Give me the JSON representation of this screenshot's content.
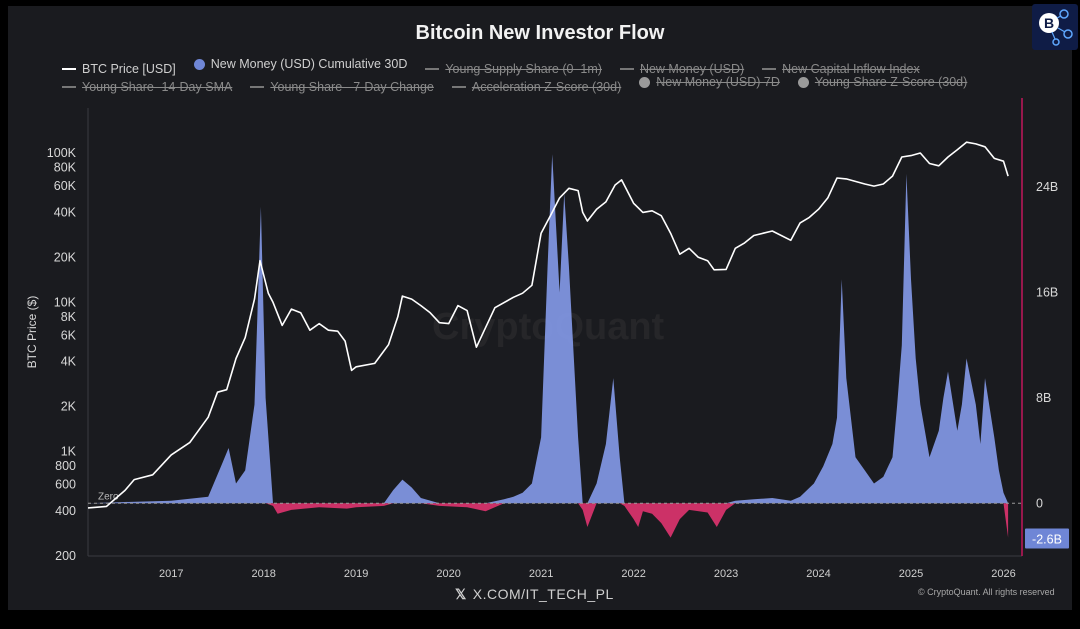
{
  "header": {
    "title": "Bitcoin New Investor Flow"
  },
  "legend": [
    {
      "label": "BTC Price [USD]",
      "kind": "line",
      "active": true,
      "color": "#ffffff"
    },
    {
      "label": "New Money (USD) Cumulative 30D",
      "kind": "dot",
      "active": true,
      "color": "#6f86d6"
    },
    {
      "label": "Young Supply Share (0–1m)",
      "kind": "line",
      "active": false,
      "color": "#777777"
    },
    {
      "label": "New Money (USD)",
      "kind": "line",
      "active": false,
      "color": "#777777"
    },
    {
      "label": "New Capital Inflow Index",
      "kind": "line",
      "active": false,
      "color": "#777777"
    },
    {
      "label": "Young Share -14-Day SMA",
      "kind": "line",
      "active": false,
      "color": "#777777"
    },
    {
      "label": "Young Share - 7-Day Change",
      "kind": "line",
      "active": false,
      "color": "#777777"
    },
    {
      "label": "Acceleration Z-Score (30d)",
      "kind": "line",
      "active": false,
      "color": "#777777"
    },
    {
      "label": "New Money (USD) 7D",
      "kind": "dot",
      "active": false,
      "color": "#9a9a9a"
    },
    {
      "label": "Young Share Z-Score (30d)",
      "kind": "dot",
      "active": false,
      "color": "#9a9a9a"
    }
  ],
  "footer": {
    "source": "X.COM/IT_TECH_PL",
    "copyright": "© CryptoQuant. All rights reserved"
  },
  "watermark": "CryptoQuant",
  "colors": {
    "background": "#1a1b1f",
    "price_line": "#ffffff",
    "positive_area": "#7f95e0",
    "negative_area": "#d6336c",
    "right_axis": "#c2185b",
    "zero_line": "#9a9a9a",
    "badge": "#6f86d6"
  },
  "chart_data": {
    "type": "line+area",
    "title": "Bitcoin New Investor Flow",
    "ylabel_left": "BTC Price ($)",
    "left_axis_scale": "log",
    "ylim_left": [
      200,
      200000
    ],
    "left_ticks": [
      "100K",
      "80K",
      "60K",
      "40K",
      "20K",
      "10K",
      "8K",
      "6K",
      "4K",
      "2K",
      "1K",
      "800",
      "600",
      "400",
      "200"
    ],
    "left_tick_values": [
      100000,
      80000,
      60000,
      40000,
      20000,
      10000,
      8000,
      6000,
      4000,
      2000,
      1000,
      800,
      600,
      400,
      200
    ],
    "right_axis_ylim": [
      -4000000000,
      30000000000
    ],
    "right_ticks": [
      "24B",
      "16B",
      "8B",
      "0"
    ],
    "right_tick_values": [
      24000000000,
      16000000000,
      8000000000,
      0
    ],
    "right_badge": "-2.6B",
    "right_badge_value": -2600000000,
    "zero_label": "Zero",
    "x_ticks": [
      "2017",
      "2018",
      "2019",
      "2020",
      "2021",
      "2022",
      "2023",
      "2024",
      "2025",
      "2026"
    ],
    "x_tick_values": [
      2017,
      2018,
      2019,
      2020,
      2021,
      2022,
      2023,
      2024,
      2025,
      2026
    ],
    "xlim": [
      2016.1,
      2026.2
    ],
    "grid": false,
    "legend_position": "top",
    "series": [
      {
        "name": "BTC Price [USD]",
        "x": [
          2016.1,
          2016.3,
          2016.5,
          2016.6,
          2016.8,
          2017.0,
          2017.2,
          2017.4,
          2017.5,
          2017.6,
          2017.7,
          2017.8,
          2017.9,
          2017.96,
          2018.05,
          2018.1,
          2018.2,
          2018.3,
          2018.4,
          2018.5,
          2018.6,
          2018.7,
          2018.8,
          2018.88,
          2018.95,
          2019.0,
          2019.2,
          2019.35,
          2019.45,
          2019.5,
          2019.6,
          2019.7,
          2019.8,
          2019.9,
          2020.0,
          2020.1,
          2020.2,
          2020.3,
          2020.5,
          2020.7,
          2020.8,
          2020.9,
          2021.0,
          2021.1,
          2021.2,
          2021.3,
          2021.4,
          2021.45,
          2021.5,
          2021.6,
          2021.7,
          2021.8,
          2021.87,
          2022.0,
          2022.1,
          2022.2,
          2022.3,
          2022.4,
          2022.5,
          2022.6,
          2022.7,
          2022.8,
          2022.87,
          2023.0,
          2023.1,
          2023.2,
          2023.3,
          2023.5,
          2023.7,
          2023.8,
          2023.9,
          2024.0,
          2024.1,
          2024.2,
          2024.3,
          2024.5,
          2024.6,
          2024.7,
          2024.8,
          2024.9,
          2025.0,
          2025.1,
          2025.2,
          2025.3,
          2025.4,
          2025.5,
          2025.6,
          2025.7,
          2025.8,
          2025.9,
          2026.0,
          2026.05
        ],
        "values": [
          420,
          430,
          550,
          650,
          700,
          950,
          1150,
          1700,
          2500,
          2600,
          4200,
          5800,
          10500,
          19000,
          11500,
          10000,
          7000,
          9000,
          8500,
          6500,
          7200,
          6500,
          6400,
          5500,
          3500,
          3700,
          3900,
          5200,
          8000,
          11000,
          10500,
          9500,
          8500,
          7300,
          7200,
          9500,
          8800,
          5000,
          9200,
          10800,
          11500,
          13000,
          29000,
          38000,
          50000,
          58000,
          56000,
          40000,
          35000,
          42000,
          47000,
          61000,
          66000,
          46000,
          40000,
          41000,
          38000,
          29000,
          21000,
          23000,
          20000,
          19000,
          16500,
          16600,
          23000,
          25000,
          28000,
          30000,
          26000,
          34000,
          37000,
          42000,
          50000,
          68000,
          67000,
          62000,
          60000,
          62000,
          70000,
          94000,
          96000,
          100000,
          85000,
          82000,
          94000,
          105000,
          118000,
          115000,
          110000,
          92000,
          88000,
          70000
        ]
      },
      {
        "name": "New Money (USD) Cumulative 30D",
        "x": [
          2016.1,
          2016.5,
          2017.0,
          2017.4,
          2017.55,
          2017.62,
          2017.7,
          2017.8,
          2017.9,
          2017.97,
          2018.02,
          2018.1,
          2018.15,
          2018.3,
          2018.6,
          2018.9,
          2019.0,
          2019.3,
          2019.4,
          2019.5,
          2019.6,
          2019.7,
          2019.9,
          2020.2,
          2020.4,
          2020.6,
          2020.7,
          2020.8,
          2020.9,
          2021.0,
          2021.07,
          2021.12,
          2021.2,
          2021.25,
          2021.3,
          2021.4,
          2021.45,
          2021.5,
          2021.6,
          2021.7,
          2021.78,
          2021.85,
          2021.9,
          2022.0,
          2022.05,
          2022.1,
          2022.2,
          2022.3,
          2022.4,
          2022.5,
          2022.6,
          2022.8,
          2022.9,
          2023.0,
          2023.1,
          2023.3,
          2023.5,
          2023.7,
          2023.8,
          2023.95,
          2024.05,
          2024.15,
          2024.2,
          2024.25,
          2024.3,
          2024.4,
          2024.5,
          2024.6,
          2024.7,
          2024.8,
          2024.85,
          2024.9,
          2024.95,
          2025.0,
          2025.05,
          2025.1,
          2025.2,
          2025.3,
          2025.35,
          2025.4,
          2025.5,
          2025.55,
          2025.6,
          2025.7,
          2025.75,
          2025.8,
          2025.9,
          2025.95,
          2026.0,
          2026.05
        ],
        "values": [
          0,
          100000000,
          200000000,
          500000000,
          3000000000,
          4200000000,
          1500000000,
          2500000000,
          7500000000,
          22500000000,
          8000000000,
          -200000000,
          -800000000,
          -500000000,
          -300000000,
          -400000000,
          -300000000,
          -200000000,
          1000000000,
          1800000000,
          1200000000,
          400000000,
          -200000000,
          -300000000,
          -600000000,
          300000000,
          500000000,
          800000000,
          1500000000,
          5000000000,
          18000000000,
          26500000000,
          16000000000,
          23500000000,
          18000000000,
          5000000000,
          -500000000,
          -1800000000,
          1500000000,
          4500000000,
          9500000000,
          3500000000,
          -200000000,
          -1200000000,
          -1800000000,
          -600000000,
          -800000000,
          -1500000000,
          -2600000000,
          -1200000000,
          -500000000,
          -700000000,
          -1800000000,
          -500000000,
          200000000,
          300000000,
          400000000,
          200000000,
          500000000,
          1500000000,
          2800000000,
          4500000000,
          6500000000,
          17000000000,
          9500000000,
          3500000000,
          2500000000,
          1500000000,
          2000000000,
          3500000000,
          7500000000,
          12000000000,
          25000000000,
          17000000000,
          11000000000,
          7500000000,
          3500000000,
          5500000000,
          8000000000,
          10000000000,
          5500000000,
          7500000000,
          11000000000,
          7500000000,
          4500000000,
          9500000000,
          5000000000,
          2500000000,
          800000000,
          -2600000000
        ]
      }
    ]
  }
}
